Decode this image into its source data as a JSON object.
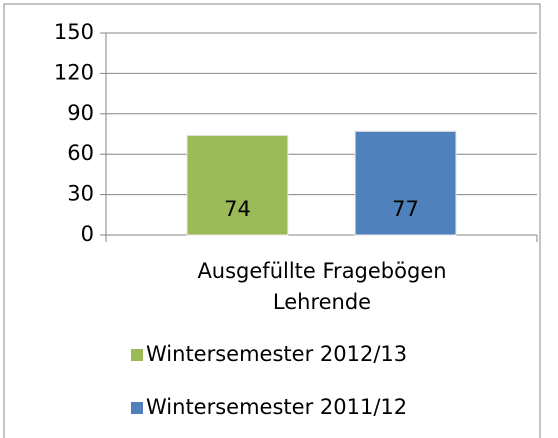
{
  "chart_data": {
    "type": "bar",
    "categories": [
      "Ausgefüllte Fragebögen Lehrende"
    ],
    "series": [
      {
        "name": "Wintersemester 2012/13",
        "color": "#9bbb59",
        "values": [
          74
        ]
      },
      {
        "name": "Wintersemester 2011/12",
        "color": "#4f81bd",
        "values": [
          77
        ]
      }
    ],
    "ylim": [
      0,
      150
    ],
    "yticks": [
      0,
      30,
      60,
      90,
      120,
      150
    ],
    "grid": true,
    "legend": "bottom"
  }
}
